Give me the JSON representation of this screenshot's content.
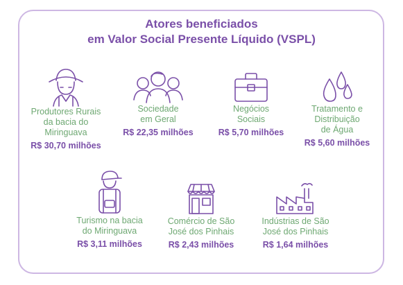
{
  "title_line1": "Atores beneficiados",
  "title_line2": "em Valor Social Presente Líquido (VSPL)",
  "colors": {
    "purple": "#7a4fa8",
    "green": "#6ea872",
    "border": "#cdb7e3"
  },
  "actors": [
    {
      "icon": "farmer-hat-icon",
      "name_lines": [
        "Produtores Rurais",
        "da bacia do",
        "Miringuava"
      ],
      "value": "R$ 30,70 milhões"
    },
    {
      "icon": "people-group-icon",
      "name_lines": [
        "Sociedade",
        "em Geral"
      ],
      "value": "R$ 22,35 milhões"
    },
    {
      "icon": "briefcase-icon",
      "name_lines": [
        "Negócios",
        "Sociais"
      ],
      "value": "R$ 5,70 milhões"
    },
    {
      "icon": "water-drops-icon",
      "name_lines": [
        "Tratamento e",
        "Distribuição",
        "de Água"
      ],
      "value": "R$ 5,60 milhões"
    },
    {
      "icon": "backpacker-icon",
      "name_lines": [
        "Turismo na bacia",
        "do Miringuava"
      ],
      "value": "R$ 3,11 milhões"
    },
    {
      "icon": "storefront-icon",
      "name_lines": [
        "Comércio de São",
        "José dos Pinhais"
      ],
      "value": "R$ 2,43 milhões"
    },
    {
      "icon": "factory-icon",
      "name_lines": [
        "Indústrias de São",
        "José dos Pinhais"
      ],
      "value": "R$ 1,64 milhões"
    }
  ]
}
